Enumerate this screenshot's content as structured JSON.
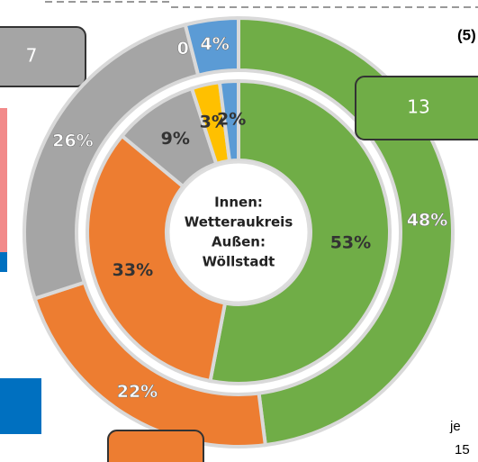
{
  "chart_data": {
    "type": "nested-donut",
    "colors": [
      "#70ad47",
      "#ed7d31",
      "#a5a5a5",
      "#ffc000",
      "#5b9bd5"
    ],
    "rings": [
      {
        "values": [
          53,
          33,
          9,
          3,
          2
        ],
        "value_labels": [
          "53%",
          "33%",
          "9%",
          "3%",
          "2%"
        ]
      },
      {
        "values": [
          48,
          22,
          26,
          0,
          4
        ],
        "value_labels": [
          "48%",
          "22%",
          "26%",
          "0%",
          "4%"
        ]
      }
    ],
    "center_label": [
      "Innen:",
      "Wetteraukreis",
      "Außen:",
      "Wöllstadt"
    ],
    "annotations": [
      "7",
      "13",
      "(5)",
      "je",
      "15"
    ]
  }
}
